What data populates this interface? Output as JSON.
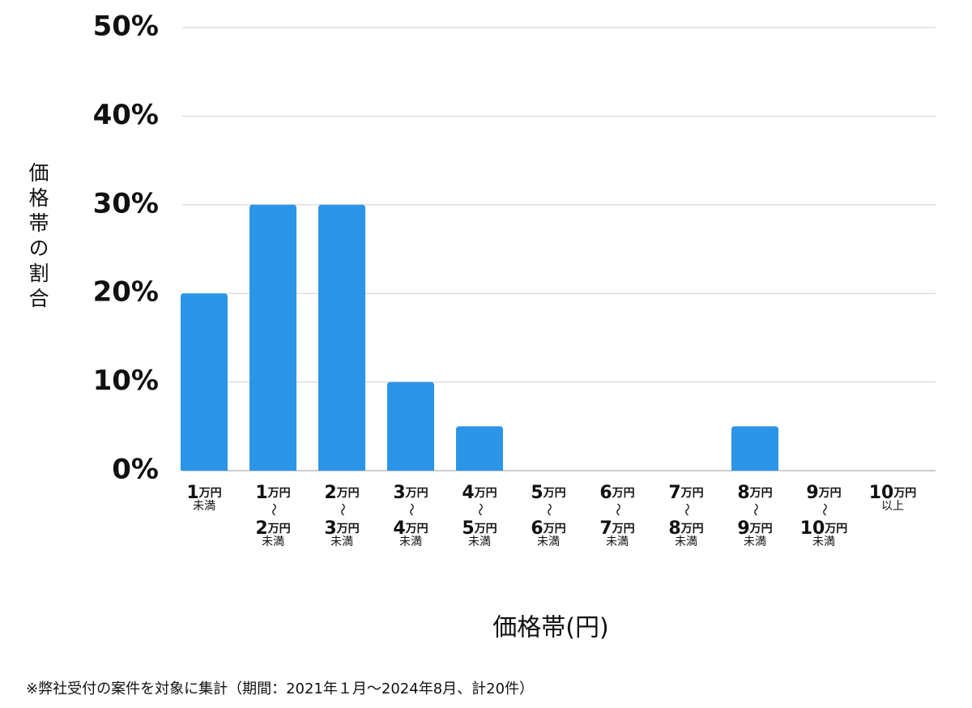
{
  "chart_data": {
    "type": "bar",
    "y_axis_label": "価格帯の割合",
    "x_axis_label": "価格帯(円)",
    "footnote": "※弊社受付の案件を対象に集計（期間：2021年１月～2024年8月、計20件）",
    "categories": [
      [
        "1万円",
        "未満"
      ],
      [
        "1万円",
        "〜",
        "2万円",
        "未満"
      ],
      [
        "2万円",
        "〜",
        "3万円",
        "未満"
      ],
      [
        "3万円",
        "〜",
        "4万円",
        "未満"
      ],
      [
        "4万円",
        "〜",
        "5万円",
        "未満"
      ],
      [
        "5万円",
        "〜",
        "6万円",
        "未満"
      ],
      [
        "6万円",
        "〜",
        "7万円",
        "未満"
      ],
      [
        "7万円",
        "〜",
        "8万円",
        "未満"
      ],
      [
        "8万円",
        "〜",
        "9万円",
        "未満"
      ],
      [
        "9万円",
        "〜",
        "10万円",
        "未満"
      ],
      [
        "10万円",
        "以上"
      ]
    ],
    "values": [
      20,
      30,
      30,
      10,
      5,
      0,
      0,
      0,
      5,
      0,
      0
    ],
    "color": "#2b95e8",
    "ylim": [
      0,
      50
    ],
    "yticks": [
      {
        "value": 0,
        "label": "0%"
      },
      {
        "value": 10,
        "label": "10%"
      },
      {
        "value": 20,
        "label": "20%"
      },
      {
        "value": 30,
        "label": "30%"
      },
      {
        "value": 40,
        "label": "40%"
      },
      {
        "value": 50,
        "label": "50%"
      }
    ],
    "grid": true
  }
}
